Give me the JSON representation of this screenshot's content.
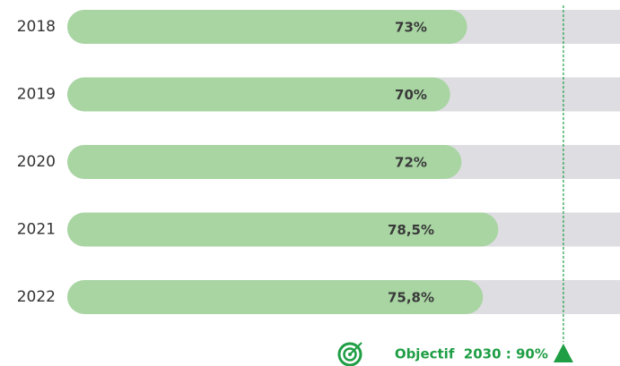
{
  "chart_data": {
    "type": "bar",
    "orientation": "horizontal",
    "categories": [
      "2018",
      "2019",
      "2020",
      "2021",
      "2022"
    ],
    "values": [
      73,
      70,
      72,
      78.5,
      75.8
    ],
    "value_labels": [
      "73%",
      "70%",
      "72%",
      "78,5%",
      "75,8%"
    ],
    "color": "#a8d5a2",
    "track_color": "#dedde2",
    "xlim": [
      0,
      100
    ],
    "target": 90,
    "target_color": "#1f9e45",
    "annotation": "Objectif  2030 : 90%"
  }
}
